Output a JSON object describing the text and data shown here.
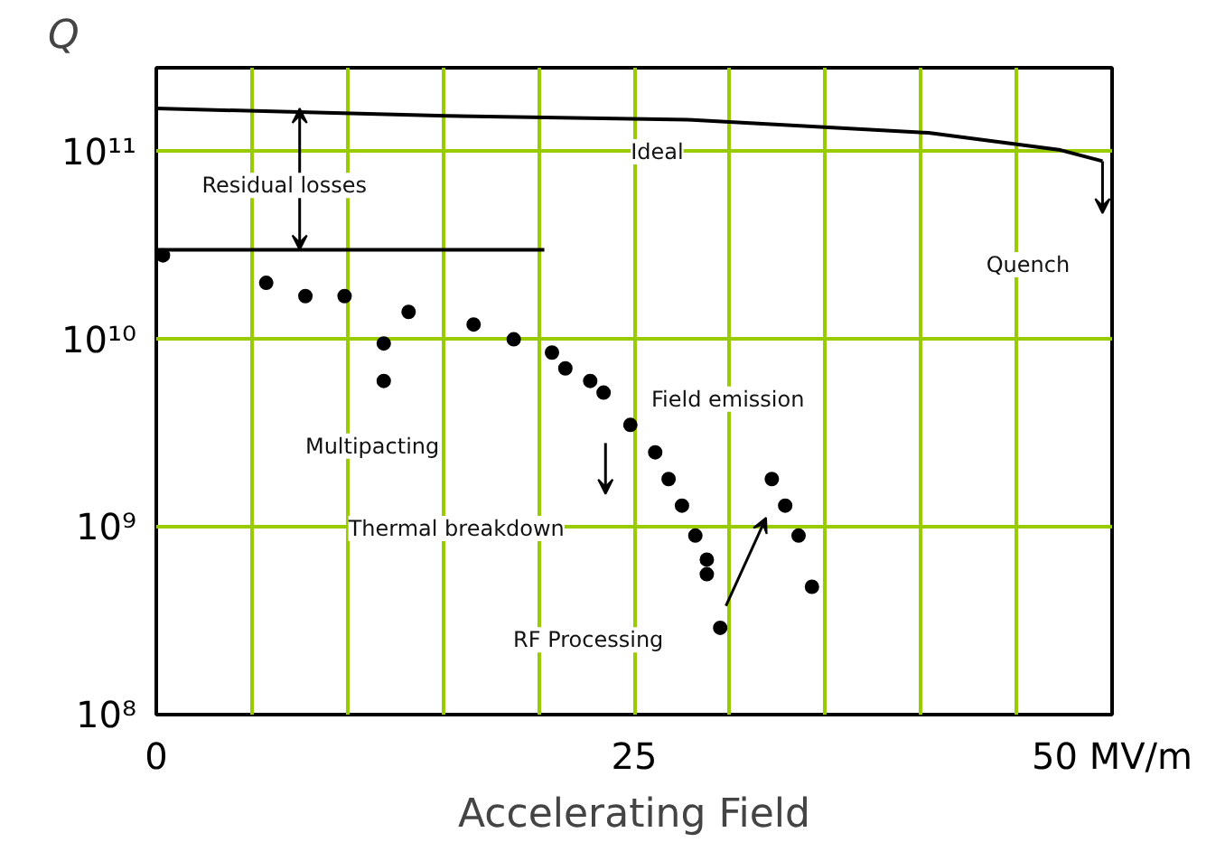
{
  "chart_data": {
    "type": "scatter",
    "xlabel": "Accelerating Field",
    "ylabel": "Q",
    "log": "y",
    "grid": true,
    "xlim": [
      0,
      50
    ],
    "ylim": [
      100000000.0,
      280000000000.0
    ],
    "xticks": [
      0,
      {
        "value": 5,
        "label": null
      },
      {
        "value": 10,
        "label": null
      },
      {
        "value": 15,
        "label": null
      },
      {
        "value": 20,
        "label": null
      },
      25,
      {
        "value": 30,
        "label": null
      },
      {
        "value": 35,
        "label": null
      },
      {
        "value": 40,
        "label": null
      },
      {
        "value": 45,
        "label": null
      },
      {
        "value": 50,
        "label": "50 MV/m"
      }
    ],
    "yticks": [
      {
        "value": 100000000.0,
        "label": "10⁸"
      },
      {
        "value": 1000000000.0,
        "label": "10⁹"
      },
      {
        "value": 10000000000.0,
        "label": "10¹⁰"
      },
      {
        "value": 100000000000.0,
        "label": "10¹¹"
      }
    ],
    "series": [
      {
        "marker": "circle",
        "color": "#000000",
        "x": [
          0.35,
          5.75,
          7.8,
          9.85,
          11.9,
          11.9,
          13.2,
          16.6,
          18.7,
          20.7,
          21.4,
          22.7,
          23.4,
          24.8,
          26.1,
          26.8,
          27.5,
          28.2,
          28.8,
          28.8,
          29.5,
          32.2,
          32.9,
          33.6,
          34.3
        ],
        "values": [
          28000000000.0,
          20000000000.0,
          17000000000.0,
          17000000000.0,
          9500000000.0,
          6000000000.0,
          14000000000.0,
          12000000000.0,
          10000000000.0,
          8500000000.0,
          7000000000.0,
          6000000000.0,
          5200000000.0,
          3500000000.0,
          2500000000.0,
          1800000000.0,
          1300000000.0,
          900000000.0,
          670000000.0,
          560000000.0,
          290000000.0,
          1800000000.0,
          1300000000.0,
          900000000.0,
          480000000.0
        ]
      },
      {
        "type": "line",
        "marker": "none",
        "color": "#000000",
        "x": [
          0,
          15.2,
          27.8,
          40.4,
          47.3,
          49.5
        ],
        "values": [
          170000000000.0,
          155000000000.0,
          148000000000.0,
          126000000000.0,
          102000000000.0,
          89000000000.0
        ]
      },
      {
        "type": "line",
        "marker": "none",
        "color": "#000000",
        "x": [
          0,
          20.3
        ],
        "values": [
          30000000000.0,
          30000000000.0
        ]
      }
    ],
    "annotations": [
      "Ideal",
      "Residual losses",
      "Quench",
      "Field emission",
      "Multipacting",
      "Thermal breakdown",
      "RF Processing"
    ]
  }
}
